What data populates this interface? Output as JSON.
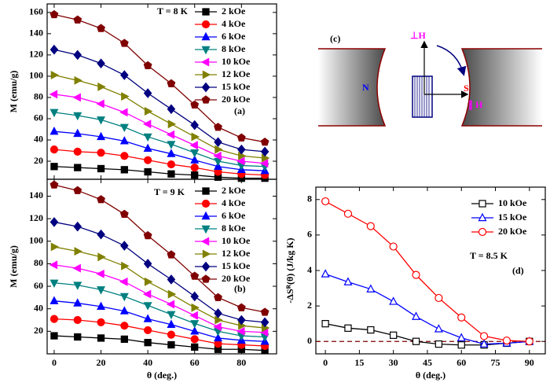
{
  "chart_data": [
    {
      "type": "line",
      "y_label": "M (emu/g)",
      "annotations": [
        "T = 8 K",
        "(a)"
      ],
      "x": [
        0,
        10,
        20,
        30,
        40,
        50,
        60,
        70,
        80,
        90
      ],
      "xlim": [
        -3,
        95
      ],
      "xticks": [
        0,
        20,
        40,
        60,
        80
      ],
      "ylim": [
        3,
        168
      ],
      "yticks": [
        20,
        40,
        60,
        80,
        100,
        120,
        140,
        160
      ],
      "legend": "upper right",
      "series": [
        {
          "name": "2 kOe",
          "color": "#000000",
          "marker": "square",
          "marker_fill": true,
          "values": [
            15,
            14,
            13,
            12,
            10,
            8,
            7,
            5,
            4,
            4
          ]
        },
        {
          "name": "4 kOe",
          "color": "#ff0000",
          "marker": "circle",
          "marker_fill": true,
          "values": [
            31,
            29,
            28,
            25,
            21,
            17,
            14,
            10,
            8,
            7
          ]
        },
        {
          "name": "6 kOe",
          "color": "#0000ff",
          "marker": "triangle-up",
          "marker_fill": true,
          "values": [
            48,
            46,
            43,
            39,
            32,
            27,
            21,
            15,
            12,
            11
          ]
        },
        {
          "name": "8 kOe",
          "color": "#008080",
          "marker": "triangle-down",
          "marker_fill": true,
          "values": [
            66,
            63,
            59,
            52,
            43,
            36,
            28,
            20,
            16,
            15
          ]
        },
        {
          "name": "10 kOe",
          "color": "#ff00ff",
          "marker": "triangle-left",
          "marker_fill": true,
          "values": [
            83,
            80,
            74,
            66,
            55,
            45,
            35,
            25,
            20,
            18
          ]
        },
        {
          "name": "12 kOe",
          "color": "#808000",
          "marker": "triangle-right",
          "marker_fill": true,
          "values": [
            101,
            96,
            90,
            81,
            67,
            55,
            43,
            31,
            25,
            23
          ]
        },
        {
          "name": "15 kOe",
          "color": "#000080",
          "marker": "diamond",
          "marker_fill": true,
          "values": [
            125,
            120,
            112,
            101,
            84,
            69,
            54,
            38,
            31,
            29
          ]
        },
        {
          "name": "20 kOe",
          "color": "#800000",
          "marker": "pentagon",
          "marker_fill": true,
          "values": [
            158,
            153,
            145,
            131,
            110,
            93,
            73,
            52,
            42,
            38
          ]
        }
      ]
    },
    {
      "type": "line",
      "x_label": "θ (deg.)",
      "y_label": "M (emu/g)",
      "annotations": [
        "T = 9 K",
        "(b)"
      ],
      "x": [
        0,
        10,
        20,
        30,
        40,
        50,
        60,
        70,
        80,
        90
      ],
      "xlim": [
        -3,
        95
      ],
      "xticks": [
        0,
        20,
        40,
        60,
        80
      ],
      "ylim": [
        0,
        155
      ],
      "yticks": [
        20,
        40,
        60,
        80,
        100,
        120,
        140
      ],
      "legend": "upper right",
      "series": [
        {
          "name": "2 kOe",
          "color": "#000000",
          "marker": "square",
          "marker_fill": true,
          "values": [
            16,
            15,
            14,
            13,
            10,
            8,
            6,
            4,
            4,
            3
          ]
        },
        {
          "name": "4 kOe",
          "color": "#ff0000",
          "marker": "circle",
          "marker_fill": true,
          "values": [
            31,
            30,
            28,
            25,
            21,
            17,
            13,
            9,
            8,
            7
          ]
        },
        {
          "name": "6 kOe",
          "color": "#0000ff",
          "marker": "triangle-up",
          "marker_fill": true,
          "values": [
            47,
            45,
            42,
            38,
            31,
            26,
            20,
            14,
            12,
            11
          ]
        },
        {
          "name": "8 kOe",
          "color": "#008080",
          "marker": "triangle-down",
          "marker_fill": true,
          "values": [
            63,
            61,
            57,
            51,
            43,
            35,
            27,
            20,
            16,
            15
          ]
        },
        {
          "name": "10 kOe",
          "color": "#ff00ff",
          "marker": "triangle-left",
          "marker_fill": true,
          "values": [
            79,
            76,
            71,
            64,
            53,
            44,
            34,
            24,
            20,
            19
          ]
        },
        {
          "name": "12 kOe",
          "color": "#808000",
          "marker": "triangle-right",
          "marker_fill": true,
          "values": [
            95,
            91,
            86,
            78,
            64,
            53,
            41,
            30,
            25,
            23
          ]
        },
        {
          "name": "15 kOe",
          "color": "#000080",
          "marker": "diamond",
          "marker_fill": true,
          "values": [
            117,
            113,
            106,
            96,
            80,
            66,
            51,
            36,
            30,
            28
          ]
        },
        {
          "name": "20 kOe",
          "color": "#800000",
          "marker": "pentagon",
          "marker_fill": true,
          "values": [
            150,
            145,
            137,
            124,
            105,
            88,
            69,
            50,
            41,
            37
          ]
        }
      ]
    },
    {
      "type": "line",
      "x_label": "θ (deg.)",
      "y_label": "-ΔSᴿ(θ) (J/kg K)",
      "annotations": [
        "T = 8.5 K",
        "(d)"
      ],
      "x": [
        0,
        10,
        20,
        30,
        40,
        50,
        60,
        70,
        80,
        90
      ],
      "xlim": [
        -4.2,
        97
      ],
      "xticks": [
        0,
        15,
        30,
        45,
        60,
        75,
        90
      ],
      "ylim": [
        -0.7,
        8.7
      ],
      "yticks": [
        0,
        2,
        4,
        6,
        8
      ],
      "hline": 0,
      "hline_color": "#800000",
      "legend": "upper right",
      "series": [
        {
          "name": "10 kOe",
          "color": "#000000",
          "marker": "square",
          "marker_fill": false,
          "values": [
            1.0,
            0.75,
            0.65,
            0.35,
            0,
            -0.15,
            -0.2,
            -0.2,
            -0.1,
            0
          ]
        },
        {
          "name": "15 kOe",
          "color": "#0000ff",
          "marker": "triangle-up",
          "marker_fill": false,
          "values": [
            3.8,
            3.35,
            2.95,
            2.25,
            1.4,
            0.7,
            0.2,
            -0.15,
            -0.1,
            0
          ]
        },
        {
          "name": "20 kOe",
          "color": "#ff0000",
          "marker": "circle",
          "marker_fill": false,
          "values": [
            7.9,
            7.2,
            6.5,
            5.35,
            3.75,
            2.45,
            1.35,
            0.3,
            0.05,
            0
          ]
        }
      ]
    }
  ],
  "diagram": {
    "label": "(c)",
    "north": "N",
    "south": "S",
    "perp": "⊥H",
    "para": "∥ H"
  }
}
